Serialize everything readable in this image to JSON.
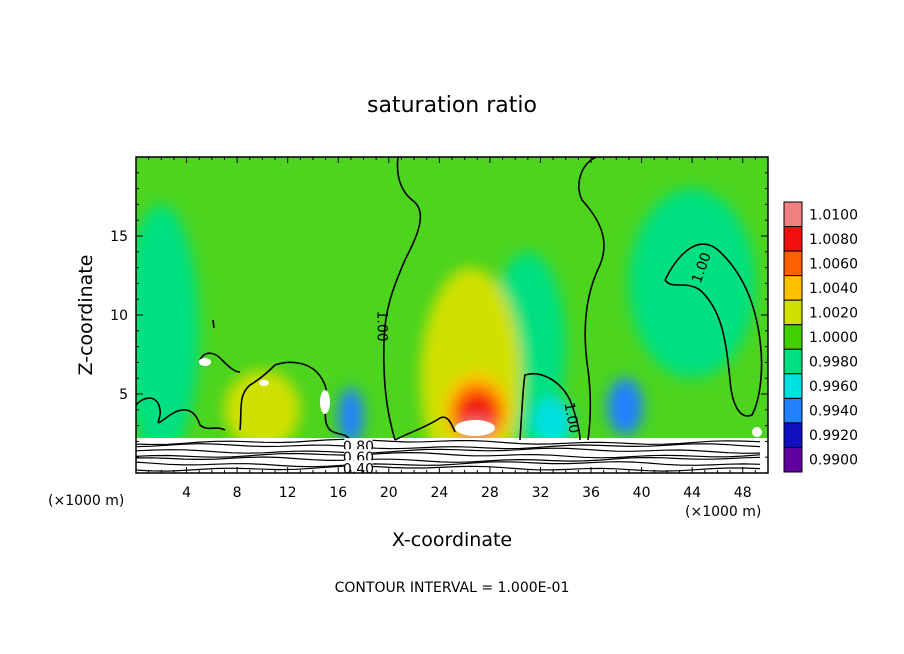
{
  "chart_data": {
    "type": "heatmap",
    "title": "saturation ratio",
    "xlabel": "X-coordinate",
    "ylabel": "Z-coordinate",
    "x_unit_left": "(×1000 m)",
    "x_unit_right": "(×1000 m)",
    "footnote": "CONTOUR INTERVAL = 1.000E-01",
    "xlim": [
      0,
      50
    ],
    "ylim": [
      0,
      20
    ],
    "x_ticks": [
      4,
      8,
      12,
      16,
      20,
      24,
      28,
      32,
      36,
      40,
      44,
      48
    ],
    "y_ticks": [
      5,
      10,
      15
    ],
    "colorbar": {
      "levels": [
        "1.0100",
        "1.0080",
        "1.0060",
        "1.0040",
        "1.0020",
        "1.0000",
        "0.9980",
        "0.9960",
        "0.9940",
        "0.9920",
        "0.9900"
      ],
      "colors": [
        "#f08080",
        "#f01010",
        "#ff6000",
        "#ffc000",
        "#d0e000",
        "#40d000",
        "#00e080",
        "#00e0e0",
        "#2080ff",
        "#1010c0",
        "#6000a0"
      ]
    },
    "contour_labels": [
      {
        "text": "1.00",
        "x": 19.5,
        "z": 9.3,
        "rotate": 90
      },
      {
        "text": "1.00",
        "x": 34.5,
        "z": 3.5,
        "rotate": 80
      },
      {
        "text": "1.00",
        "x": 44.7,
        "z": 13.0,
        "rotate": -70
      },
      {
        "text": "0.80",
        "x": 17.6,
        "z": 1.7,
        "rotate": 0
      },
      {
        "text": "0.60",
        "x": 17.6,
        "z": 1.0,
        "rotate": 0
      },
      {
        "text": "0.40",
        "x": 17.6,
        "z": 0.3,
        "rotate": 0
      }
    ],
    "fields": [
      {
        "level": "0.9980",
        "x": 44,
        "z": 12,
        "rx": 5,
        "rz": 6
      },
      {
        "level": "0.9980",
        "x": 2,
        "z": 9,
        "rx": 3,
        "rz": 8
      },
      {
        "level": "0.9980",
        "x": 31,
        "z": 8,
        "rx": 3,
        "rz": 6
      },
      {
        "level": "1.0020",
        "x": 26.5,
        "z": 6,
        "rx": 4,
        "rz": 7
      },
      {
        "level": "1.0020",
        "x": 10,
        "z": 4,
        "rx": 3,
        "rz": 2.5
      },
      {
        "level": "0.9940",
        "x": 17,
        "z": 3.6,
        "rx": 1,
        "rz": 1.8
      },
      {
        "level": "0.9960",
        "x": 33,
        "z": 3.2,
        "rx": 1.6,
        "rz": 1.6
      },
      {
        "level": "0.9940",
        "x": 38.7,
        "z": 4.2,
        "rx": 1.4,
        "rz": 1.8
      },
      {
        "level": "1.0040",
        "x": 27,
        "z": 4.0,
        "rx": 2.5,
        "rz": 2.3
      },
      {
        "level": "1.0060",
        "x": 27,
        "z": 3.8,
        "rx": 2.0,
        "rz": 1.8
      },
      {
        "level": "1.0080",
        "x": 27,
        "z": 3.6,
        "rx": 1.5,
        "rz": 1.3
      },
      {
        "level": "1.0100",
        "x": 27,
        "z": 2.8,
        "rx": 1.2,
        "rz": 0.7
      }
    ]
  }
}
